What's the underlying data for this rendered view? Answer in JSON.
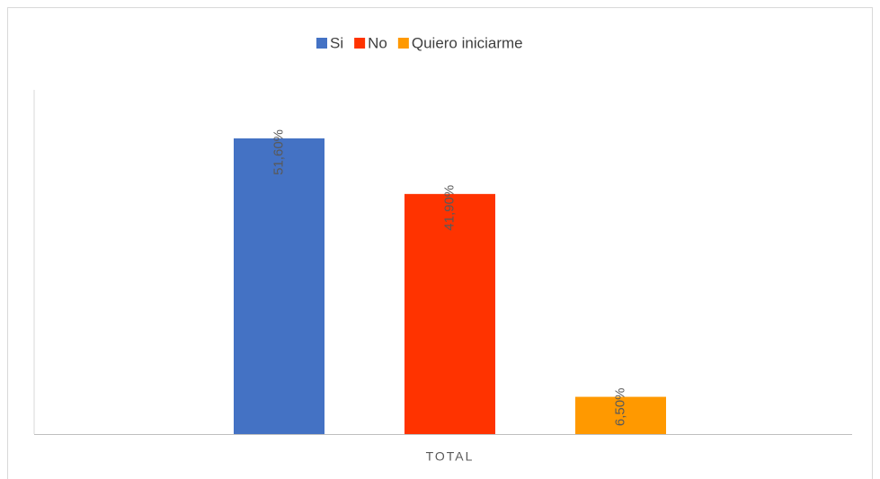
{
  "chart_data": {
    "type": "bar",
    "categories": [
      "TOTAL"
    ],
    "series": [
      {
        "name": "Si",
        "color": "#4472c4",
        "values": [
          51.6
        ],
        "value_labels": [
          "51,60%"
        ]
      },
      {
        "name": "No",
        "color": "#ff3300",
        "values": [
          41.9
        ],
        "value_labels": [
          "41,90%"
        ]
      },
      {
        "name": "Quiero iniciarme",
        "color": "#ff9900",
        "values": [
          6.5
        ],
        "value_labels": [
          "6,50%"
        ]
      }
    ],
    "legend": "top"
  }
}
